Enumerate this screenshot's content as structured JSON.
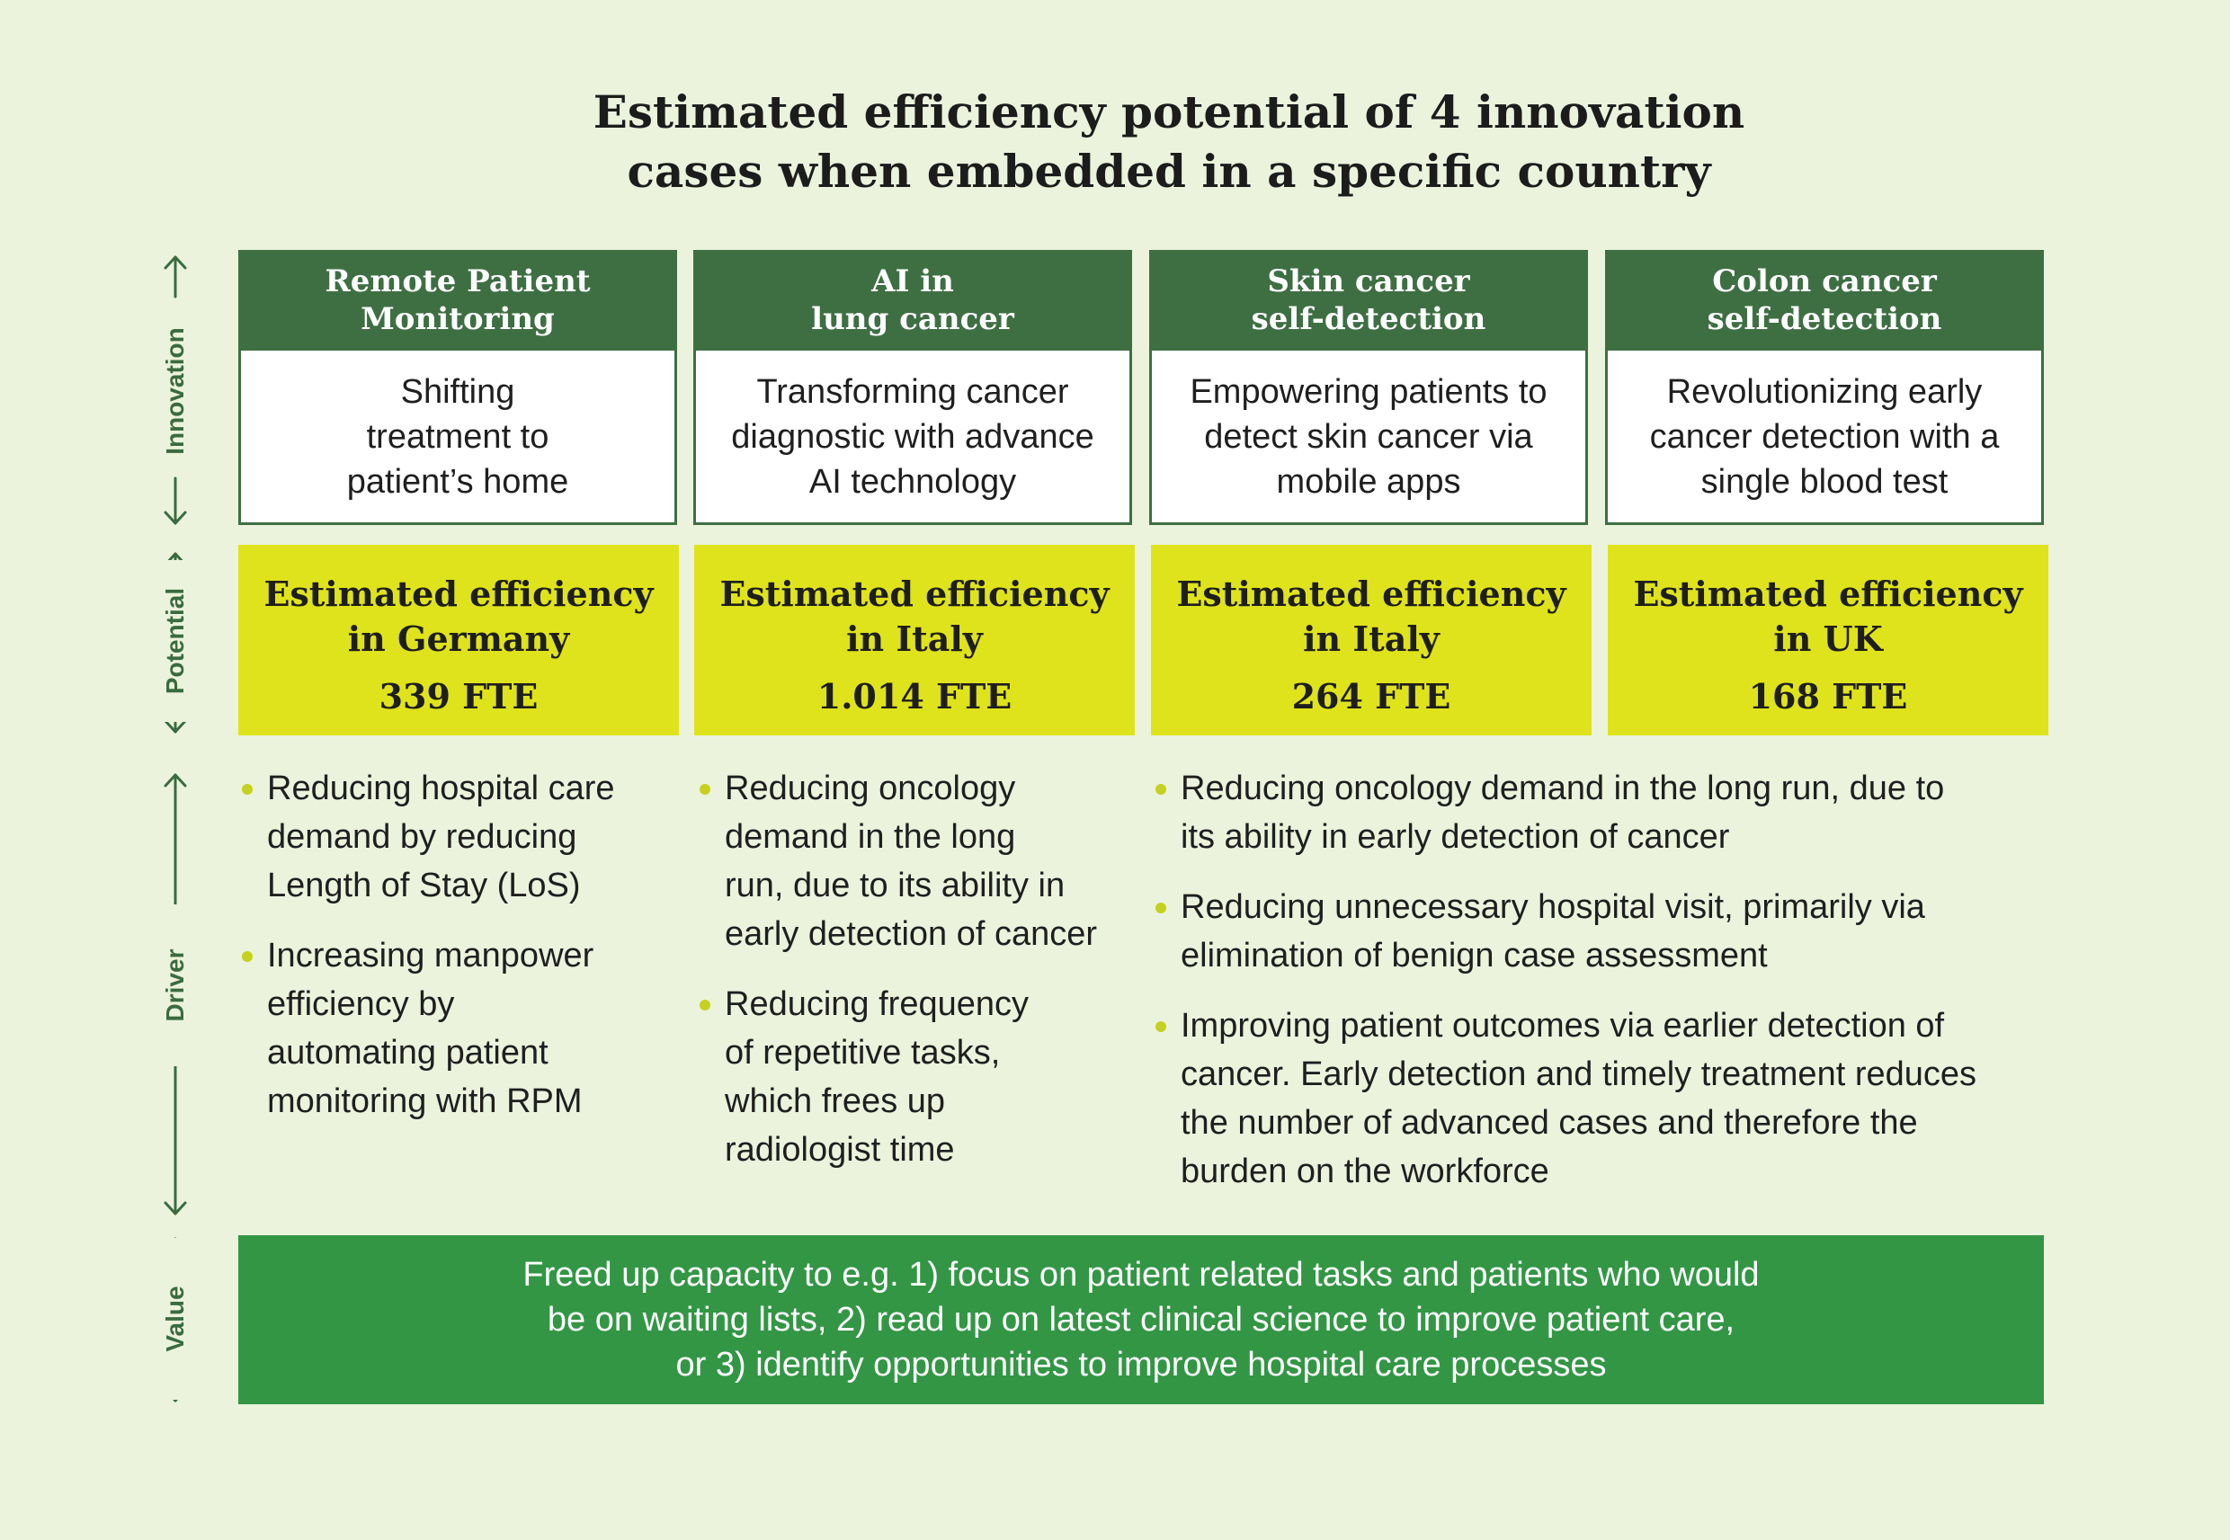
{
  "title": {
    "line1": "Estimated efficiency potential of 4 innovation",
    "line2": "cases when embedded in a specific country"
  },
  "axis": {
    "innovation": "Innovation",
    "potential": "Potential",
    "driver": "Driver",
    "value": "Value"
  },
  "cases": [
    {
      "head": [
        "Remote Patient",
        "Monitoring"
      ],
      "body": [
        "Shifting",
        "treatment to",
        "patient’s home"
      ],
      "potential_label": [
        "Estimated efficiency",
        "in Germany"
      ],
      "fte": "339 FTE"
    },
    {
      "head": [
        "AI in",
        "lung cancer"
      ],
      "body": [
        "Transforming cancer",
        "diagnostic with advance",
        "AI technology"
      ],
      "potential_label": [
        "Estimated efficiency",
        "in Italy"
      ],
      "fte": "1.014 FTE"
    },
    {
      "head": [
        "Skin cancer",
        "self-detection"
      ],
      "body": [
        "Empowering patients to",
        "detect skin cancer via",
        "mobile apps"
      ],
      "potential_label": [
        "Estimated efficiency",
        "in Italy"
      ],
      "fte": "264 FTE"
    },
    {
      "head": [
        "Colon cancer",
        "self-detection"
      ],
      "body": [
        "Revolutionizing early",
        "cancer detection with a",
        "single blood test"
      ],
      "potential_label": [
        "Estimated efficiency",
        "in UK"
      ],
      "fte": "168 FTE"
    }
  ],
  "drivers": {
    "col1": [
      [
        "Reducing hospital care",
        "demand by reducing",
        "Length of Stay (LoS)"
      ],
      [
        "Increasing manpower",
        "efficiency by",
        "automating patient",
        "monitoring with RPM"
      ]
    ],
    "col2": [
      [
        "Reducing oncology",
        "demand in the long",
        "run, due to its ability in",
        "early detection of cancer"
      ],
      [
        "Reducing frequency",
        "of repetitive tasks,",
        "which frees up",
        "radiologist time"
      ]
    ],
    "col34": [
      [
        "Reducing oncology demand in the long run, due to",
        "its ability in early detection of cancer"
      ],
      [
        "Reducing unnecessary hospital visit, primarily via",
        "elimination of benign case assessment"
      ],
      [
        "Improving patient outcomes via earlier detection of",
        "cancer. Early detection and timely treatment reduces",
        "the number of advanced cases and therefore the",
        "burden on the workforce"
      ]
    ]
  },
  "value_text": [
    "Freed up capacity to e.g. 1) focus on patient related tasks and patients who would",
    "be on waiting lists, 2) read up on latest clinical science to improve patient care,",
    "or 3) identify opportunities to improve hospital care processes"
  ],
  "colors": {
    "background": "#ebf3dd",
    "header_green": "#3e6f43",
    "potential_yellow": "#dfe31b",
    "value_green": "#339645",
    "bullet": "#c5d11e"
  }
}
